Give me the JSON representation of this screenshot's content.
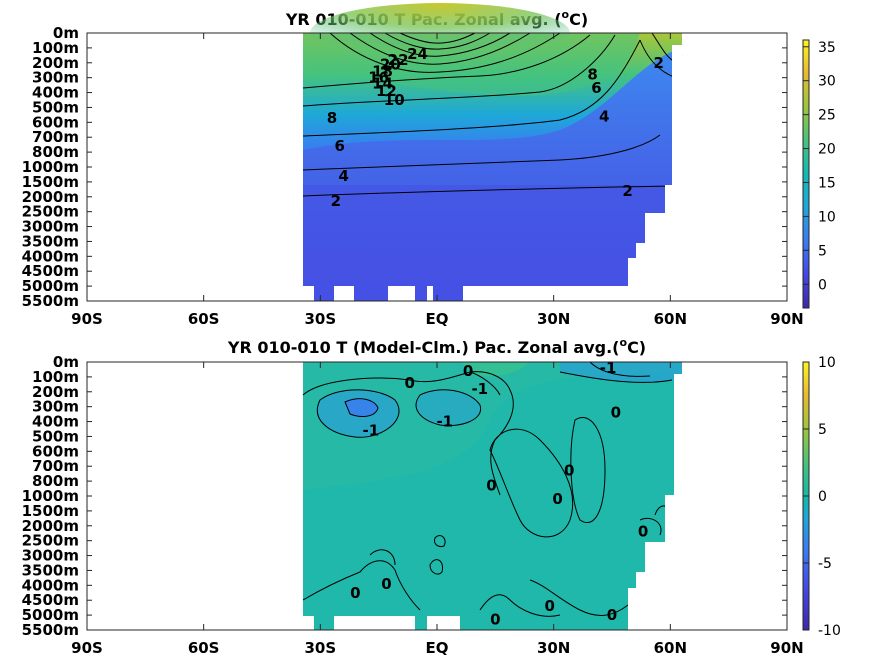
{
  "chart_data": [
    {
      "type": "heatmap",
      "title_main": "YR 010-010 T Pac. Zonal avg. (",
      "title_sup": "o",
      "title_end": "C)",
      "x_ticks": [
        "90S",
        "60S",
        "30S",
        "EQ",
        "30N",
        "60N",
        "90N"
      ],
      "x_values": [
        -90,
        -60,
        -30,
        0,
        30,
        60,
        90
      ],
      "xlim": [
        -90,
        90
      ],
      "y_ticks": [
        "0m",
        "100m",
        "200m",
        "300m",
        "400m",
        "500m",
        "600m",
        "700m",
        "800m",
        "1000m",
        "1500m",
        "2000m",
        "2500m",
        "3000m",
        "3500m",
        "4000m",
        "4500m",
        "5000m",
        "5500m"
      ],
      "colorbar": {
        "ticks": [
          "0",
          "5",
          "10",
          "15",
          "20",
          "25",
          "30",
          "35"
        ],
        "tick_values": [
          0,
          5,
          10,
          15,
          20,
          25,
          30,
          35
        ],
        "range": [
          -3.5,
          36
        ]
      },
      "data_lon_range": [
        -35,
        62
      ],
      "contour_labels": [
        {
          "text": "24",
          "lon": -5,
          "level": 1.4
        },
        {
          "text": "22",
          "lon": -10,
          "level": 1.8
        },
        {
          "text": "20",
          "lon": -12,
          "level": 2.1
        },
        {
          "text": "18",
          "lon": -14,
          "level": 2.6
        },
        {
          "text": "16",
          "lon": -15,
          "level": 3.0
        },
        {
          "text": "14",
          "lon": -14,
          "level": 3.4
        },
        {
          "text": "12",
          "lon": -13,
          "level": 3.9
        },
        {
          "text": "10",
          "lon": -11,
          "level": 4.5
        },
        {
          "text": "8",
          "lon": -27,
          "level": 5.7
        },
        {
          "text": "6",
          "lon": -25,
          "level": 7.6
        },
        {
          "text": "4",
          "lon": -24,
          "level": 9.6
        },
        {
          "text": "2",
          "lon": -26,
          "level": 11.3
        },
        {
          "text": "8",
          "lon": 40,
          "level": 2.8
        },
        {
          "text": "6",
          "lon": 41,
          "level": 3.7
        },
        {
          "text": "4",
          "lon": 43,
          "level": 5.6
        },
        {
          "text": "2",
          "lon": 49,
          "level": 10.6
        },
        {
          "text": "2",
          "lon": 57,
          "level": 2.0
        }
      ]
    },
    {
      "type": "heatmap",
      "title_main": "YR 010-010 T (Model-Clm.) Pac. Zonal avg.(",
      "title_sup": "o",
      "title_end": "C)",
      "x_ticks": [
        "90S",
        "60S",
        "30S",
        "EQ",
        "30N",
        "60N",
        "90N"
      ],
      "x_values": [
        -90,
        -60,
        -30,
        0,
        30,
        60,
        90
      ],
      "xlim": [
        -90,
        90
      ],
      "y_ticks": [
        "0m",
        "100m",
        "200m",
        "300m",
        "400m",
        "500m",
        "600m",
        "700m",
        "800m",
        "1000m",
        "1500m",
        "2000m",
        "2500m",
        "3000m",
        "3500m",
        "4000m",
        "4500m",
        "5000m",
        "5500m"
      ],
      "colorbar": {
        "ticks": [
          "-10",
          "-5",
          "0",
          "5",
          "10"
        ],
        "tick_values": [
          -10,
          -5,
          0,
          5,
          10
        ],
        "range": [
          -10,
          10
        ]
      },
      "data_lon_range": [
        -35,
        62
      ],
      "contour_labels": [
        {
          "text": "0",
          "lon": -7,
          "level": 1.4
        },
        {
          "text": "0",
          "lon": 8,
          "level": 0.6
        },
        {
          "text": "-1",
          "lon": 11,
          "level": 1.8
        },
        {
          "text": "-1",
          "lon": 44,
          "level": 0.4
        },
        {
          "text": "-1",
          "lon": -17,
          "level": 4.6
        },
        {
          "text": "-1",
          "lon": 2,
          "level": 4.0
        },
        {
          "text": "0",
          "lon": 46,
          "level": 3.4
        },
        {
          "text": "0",
          "lon": 34,
          "level": 7.3
        },
        {
          "text": "0",
          "lon": 14,
          "level": 8.3
        },
        {
          "text": "0",
          "lon": 31,
          "level": 9.2
        },
        {
          "text": "0",
          "lon": 53,
          "level": 11.4
        },
        {
          "text": "0",
          "lon": -13,
          "level": 14.9
        },
        {
          "text": "0",
          "lon": -21,
          "level": 15.5
        },
        {
          "text": "0",
          "lon": 15,
          "level": 17.3
        },
        {
          "text": "0",
          "lon": 29,
          "level": 16.4
        },
        {
          "text": "0",
          "lon": 45,
          "level": 17.0
        }
      ]
    }
  ]
}
